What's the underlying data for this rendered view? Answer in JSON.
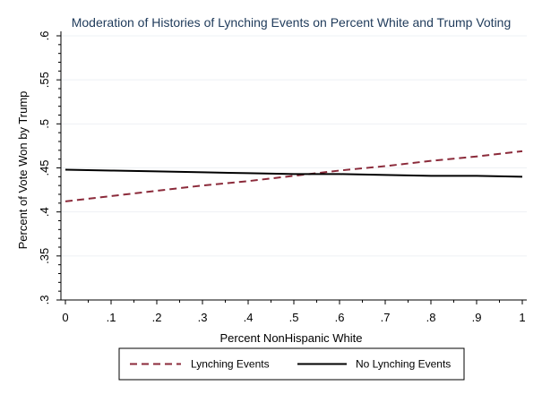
{
  "chart_data": {
    "type": "line",
    "title": "Moderation of Histories of Lynching Events on Percent White and Trump Voting",
    "xlabel": "Percent NonHispanic White",
    "ylabel": "Percent of Vote Won by Trump",
    "xlim": [
      0,
      1
    ],
    "ylim": [
      0.3,
      0.6
    ],
    "grid": true,
    "legend_position": "bottom",
    "x": [
      0,
      0.1,
      0.2,
      0.3,
      0.4,
      0.5,
      0.6,
      0.7,
      0.8,
      0.9,
      1
    ],
    "x_tick_labels": [
      "0",
      ".1",
      ".2",
      ".3",
      ".4",
      ".5",
      ".6",
      ".7",
      ".8",
      ".9",
      "1"
    ],
    "y_ticks": [
      0.3,
      0.35,
      0.4,
      0.45,
      0.5,
      0.55,
      0.6
    ],
    "y_tick_labels": [
      ".3",
      ".35",
      ".4",
      ".45",
      ".5",
      ".55",
      ".6"
    ],
    "series": [
      {
        "name": "Lynching Events",
        "color": "#8b2a3a",
        "line_style": "dashed",
        "values": [
          0.412,
          0.418,
          0.424,
          0.43,
          0.435,
          0.441,
          0.447,
          0.452,
          0.458,
          0.463,
          0.469
        ]
      },
      {
        "name": "No Lynching Events",
        "color": "#000000",
        "line_style": "solid",
        "values": [
          0.448,
          0.447,
          0.446,
          0.445,
          0.444,
          0.443,
          0.443,
          0.442,
          0.441,
          0.441,
          0.44
        ]
      }
    ]
  }
}
